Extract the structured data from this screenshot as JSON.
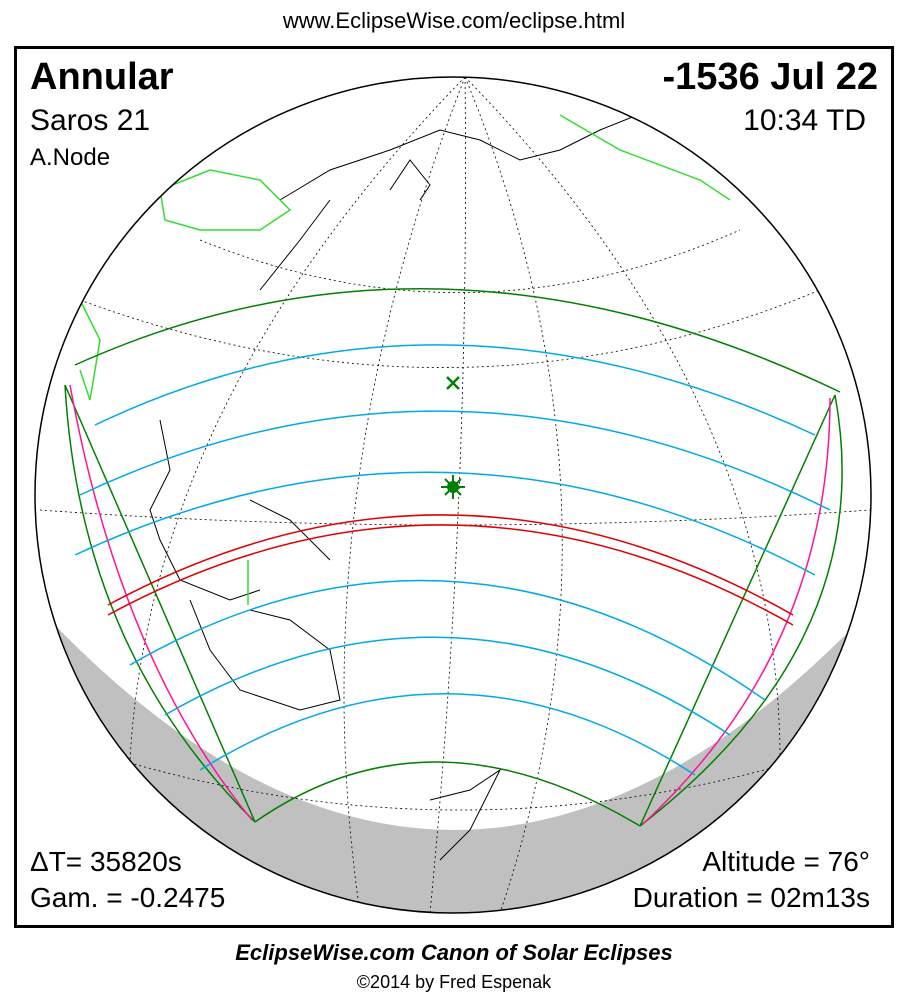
{
  "header": {
    "url": "www.EclipseWise.com/eclipse.html"
  },
  "eclipse": {
    "type": "Annular",
    "date": "-1536 Jul 22",
    "saros": "Saros  21",
    "time": "10:34 TD",
    "node": "A.Node",
    "delta_t": "ΔT=  35820s",
    "gamma": "Gam. = -0.2475",
    "altitude": "Altitude = 76°",
    "duration": "Duration = 02m13s"
  },
  "footer": {
    "title": "EclipseWise.com Canon of Solar Eclipses",
    "copyright": "©2014 by Fred Espenak"
  },
  "colors": {
    "central_line": "#e00000",
    "penumbral_limits": "#008000",
    "magnitude_lines": "#00a8e8",
    "rise_set": "#ff1493",
    "borders": "#33dd33",
    "night_shadow": "#c0c0c0"
  }
}
